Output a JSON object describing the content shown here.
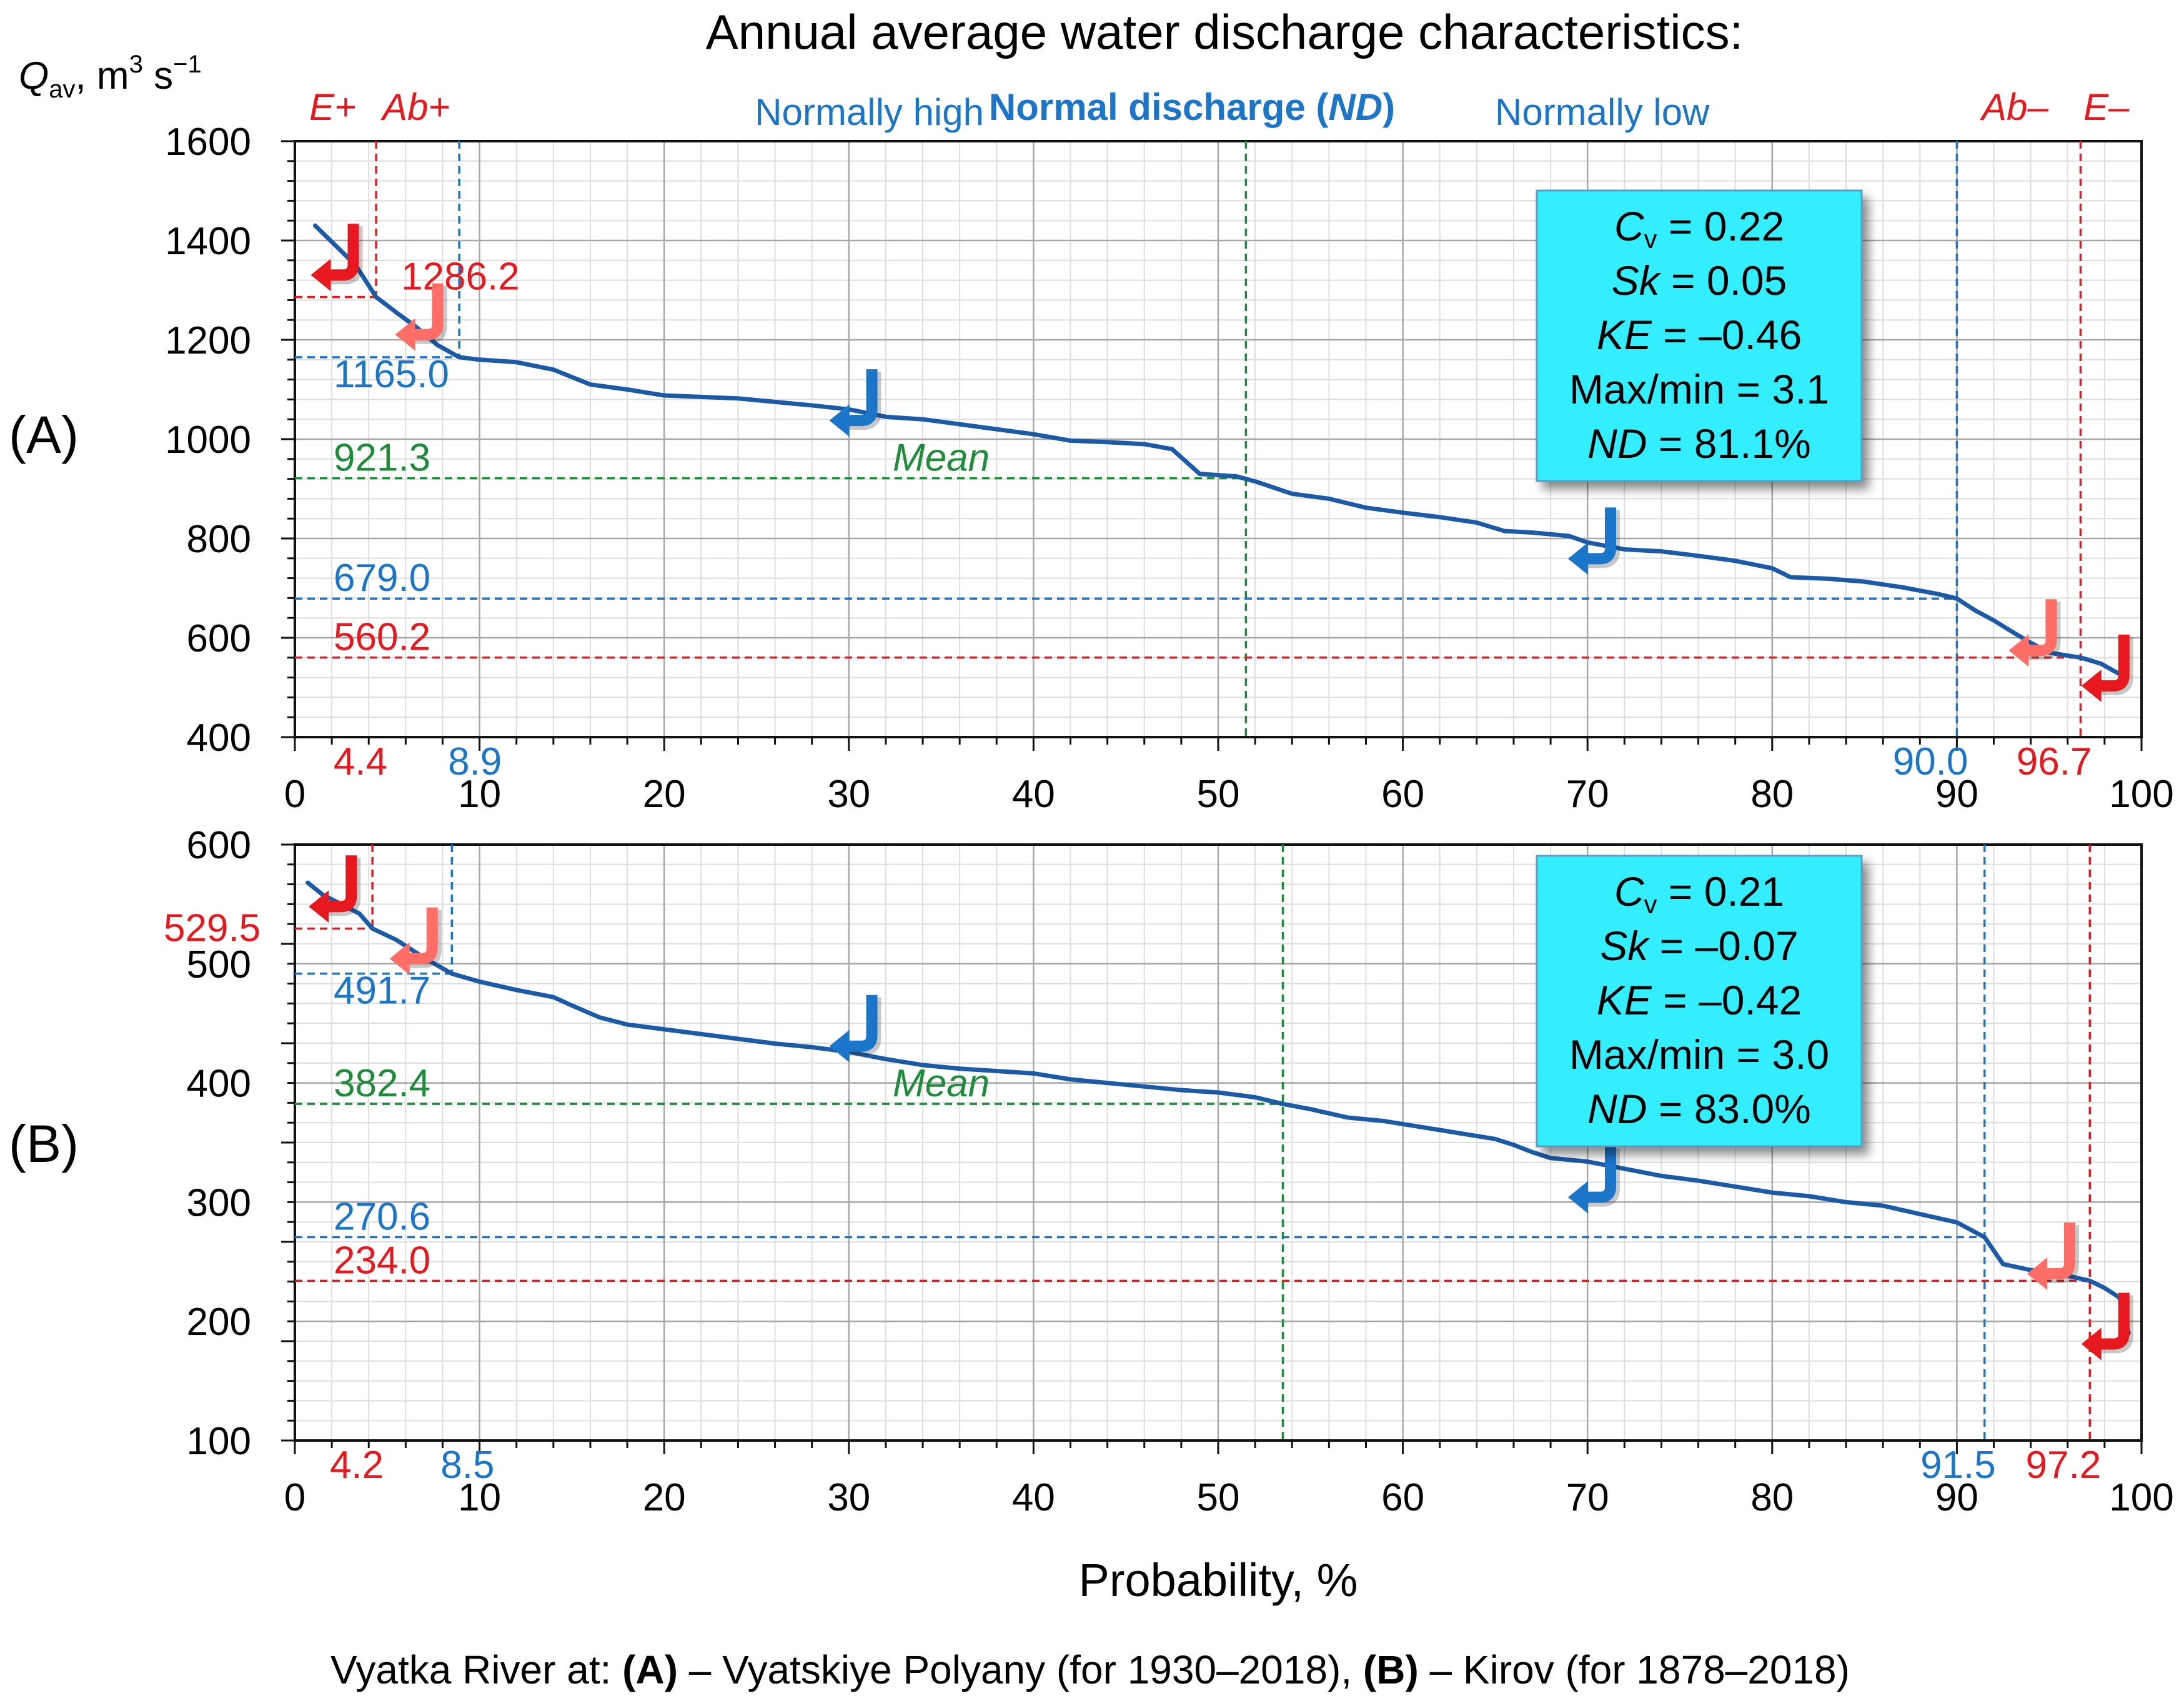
{
  "figure": {
    "title": "Annual average water discharge characteristics:",
    "y_axis_label": "Q",
    "y_axis_label_sub": "av",
    "y_axis_label_units": ", m",
    "y_axis_label_sup3": "3",
    "y_axis_label_s": " s",
    "y_axis_label_sup_neg1": "−1",
    "x_axis_label": "Probability, %",
    "caption_prefix": "Vyatka River at: ",
    "caption_a_bold": "(A)",
    "caption_a_text": " – Vyatskiye Polyany (for 1930–2018), ",
    "caption_b_bold": "(B)",
    "caption_b_text": " – Kirov (for 1878–2018)",
    "zone_e_plus": "E+",
    "zone_ab_plus": "Ab+",
    "zone_normally_high": "Normally high",
    "zone_normal_prefix": "Normal discharge (",
    "zone_normal_nd": "ND",
    "zone_normal_suffix": ")",
    "zone_normally_low": "Normally low",
    "zone_ab_minus": "Ab–",
    "zone_e_minus": "E–"
  },
  "colors": {
    "curve": "#1b5aa6",
    "red": "#e8191e",
    "blue": "#1b76c9",
    "green": "#1e8c3a",
    "grid_major": "#a8a8a8",
    "grid_minor": "#dedede",
    "stats_box": "#33eeff"
  },
  "chart_data": [
    {
      "panel_label": "(A)",
      "type": "line",
      "xlabel": "Probability, %",
      "ylabel": "Qav, m3 s-1",
      "xlim": [
        0,
        100
      ],
      "ylim": [
        400,
        1600
      ],
      "x_ticks": [
        0,
        10,
        20,
        30,
        40,
        50,
        60,
        70,
        80,
        90,
        100
      ],
      "y_ticks": [
        400,
        600,
        800,
        1000,
        1200,
        1400,
        1600
      ],
      "mean_label": "Mean",
      "x": [
        1.1,
        2.2,
        3.3,
        4.4,
        5.5,
        6.6,
        7.7,
        8.9,
        10.0,
        12.0,
        14.0,
        16.0,
        18.0,
        20.0,
        22.0,
        24.0,
        26.0,
        28.0,
        30.0,
        32.0,
        34.0,
        36.0,
        38.0,
        40.0,
        42.0,
        44.0,
        46.0,
        47.5,
        49.0,
        51.0,
        52.0,
        54.0,
        56.0,
        58.0,
        60.0,
        62.0,
        64.0,
        65.5,
        67.0,
        69.0,
        70.0,
        72.0,
        74.0,
        76.0,
        78.0,
        80.0,
        81.0,
        83.0,
        85.0,
        87.0,
        89.0,
        90.0,
        91.0,
        92.0,
        93.0,
        94.0,
        95.0,
        96.7,
        97.8,
        98.9
      ],
      "y": [
        1430,
        1390,
        1350,
        1286.2,
        1255,
        1225,
        1190,
        1165,
        1160,
        1155,
        1140,
        1110,
        1100,
        1088,
        1085,
        1082,
        1075,
        1068,
        1060,
        1045,
        1040,
        1030,
        1020,
        1010,
        997,
        994,
        990,
        980,
        930,
        925,
        915,
        890,
        880,
        862,
        852,
        843,
        832,
        815,
        812,
        805,
        792,
        778,
        774,
        765,
        755,
        740,
        722,
        719,
        713,
        702,
        688,
        679,
        655,
        635,
        612,
        590,
        570,
        560.2,
        548,
        525
      ],
      "thresholds": [
        {
          "role": "E+",
          "prob": 4.4,
          "q": 1286.2,
          "prob_label": "4.4",
          "q_label": "1286.2",
          "color": "red"
        },
        {
          "role": "Ab+",
          "prob": 8.9,
          "q": 1165.0,
          "prob_label": "8.9",
          "q_label": "1165.0",
          "color": "blue"
        },
        {
          "role": "Mean",
          "prob": 51.5,
          "q": 921.3,
          "prob_label": "",
          "q_label": "921.3",
          "color": "green"
        },
        {
          "role": "Ab-",
          "prob": 90.0,
          "q": 679.0,
          "prob_label": "90.0",
          "q_label": "679.0",
          "color": "blue"
        },
        {
          "role": "E-",
          "prob": 96.7,
          "q": 560.2,
          "prob_label": "96.7",
          "q_label": "560.2",
          "color": "red"
        }
      ],
      "stats": [
        {
          "key": "C",
          "sub": "v",
          "val": " = 0.22"
        },
        {
          "key": "Sk",
          "sub": "",
          "val": " = 0.05"
        },
        {
          "key": "KE",
          "sub": "",
          "val": " = –0.46"
        },
        {
          "key": "",
          "sub": "",
          "val": "Max/min = 3.1"
        },
        {
          "key": "ND",
          "sub": "",
          "val": " = 81.1%"
        }
      ]
    },
    {
      "panel_label": "(B)",
      "type": "line",
      "xlabel": "Probability, %",
      "ylabel": "Qav, m3 s-1",
      "xlim": [
        0,
        100
      ],
      "ylim": [
        100,
        600
      ],
      "x_ticks": [
        0,
        10,
        20,
        30,
        40,
        50,
        60,
        70,
        80,
        90,
        100
      ],
      "y_ticks": [
        100,
        200,
        300,
        400,
        500,
        600
      ],
      "mean_label": "Mean",
      "x": [
        0.7,
        1.5,
        2.5,
        3.5,
        4.2,
        5.5,
        7.0,
        8.5,
        10.0,
        12.0,
        14.0,
        15.0,
        16.5,
        18.0,
        20.0,
        22.0,
        24.0,
        26.0,
        28.0,
        30.0,
        32.0,
        34.0,
        36.0,
        38.0,
        40.0,
        42.0,
        44.0,
        46.0,
        48.0,
        50.0,
        52.0,
        53.5,
        55.0,
        57.0,
        59.0,
        61.0,
        63.0,
        65.0,
        66.0,
        67.0,
        68.0,
        70.0,
        72.0,
        74.0,
        76.0,
        78.0,
        80.0,
        82.0,
        84.0,
        86.0,
        88.0,
        90.0,
        91.5,
        92.5,
        94.0,
        95.5,
        97.2,
        98.0,
        98.8,
        99.3
      ],
      "y": [
        568,
        558,
        550,
        542,
        529.5,
        520,
        505,
        491.7,
        485,
        478,
        472,
        465,
        455,
        449,
        445,
        441,
        437,
        433,
        430,
        426,
        420,
        415,
        412,
        410,
        408,
        403,
        400,
        397,
        394,
        392,
        388,
        382.4,
        378,
        371,
        368,
        363,
        358,
        353,
        348,
        342,
        337,
        334,
        328,
        322,
        318,
        313,
        308,
        305,
        300,
        297,
        290,
        283,
        270.6,
        248,
        243,
        240,
        234.0,
        228,
        220,
        190
      ],
      "thresholds": [
        {
          "role": "E+",
          "prob": 4.2,
          "q": 529.5,
          "prob_label": "4.2",
          "q_label": "529.5",
          "color": "red"
        },
        {
          "role": "Ab+",
          "prob": 8.5,
          "q": 491.7,
          "prob_label": "8.5",
          "q_label": "491.7",
          "color": "blue"
        },
        {
          "role": "Mean",
          "prob": 53.5,
          "q": 382.4,
          "prob_label": "",
          "q_label": "382.4",
          "color": "green"
        },
        {
          "role": "Ab-",
          "prob": 91.5,
          "q": 270.6,
          "prob_label": "91.5",
          "q_label": "270.6",
          "color": "blue"
        },
        {
          "role": "E-",
          "prob": 97.2,
          "q": 234.0,
          "prob_label": "97.2",
          "q_label": "234.0",
          "color": "red"
        }
      ],
      "stats": [
        {
          "key": "C",
          "sub": "v",
          "val": " = 0.21"
        },
        {
          "key": "Sk",
          "sub": "",
          "val": " = –0.07"
        },
        {
          "key": "KE",
          "sub": "",
          "val": " = –0.42"
        },
        {
          "key": "",
          "sub": "",
          "val": "Max/min = 3.0"
        },
        {
          "key": "ND",
          "sub": "",
          "val": " = 83.0%"
        }
      ]
    }
  ]
}
